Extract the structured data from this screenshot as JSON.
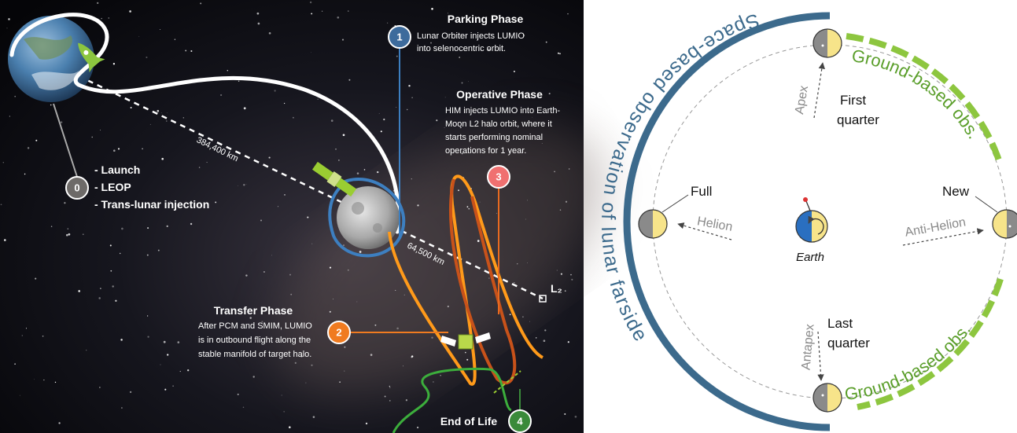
{
  "mission_diagram": {
    "phases": [
      {
        "number": "0",
        "items": [
          "- Launch",
          "- LEOP",
          "- Trans-lunar injection"
        ]
      },
      {
        "number": "1",
        "title": "Parking Phase",
        "lines": [
          "Lunar Orbiter injects LUMIO",
          "into selenocentric orbit."
        ]
      },
      {
        "number": "2",
        "title": "Transfer Phase",
        "lines": [
          "After PCM and SMIM, LUMIO",
          "is in outbound flight along the",
          "stable manifold of target halo."
        ]
      },
      {
        "number": "3",
        "title": "Operative Phase",
        "lines": [
          "HIM injects LUMIO into Earth-",
          "Moon L2 halo orbit, where it",
          "starts performing nominal",
          "operations for 1 year."
        ]
      },
      {
        "number": "4",
        "title": "End of Life"
      }
    ],
    "earth_moon_distance": "384,400 km",
    "moon_l2_distance": "64,500 km",
    "l2_label": "L₂"
  },
  "observation_diagram": {
    "space_arc": "Space-based observation of lunar farside",
    "ground_arcs": [
      "Ground-based obs.",
      "Ground-based obs."
    ],
    "lunar_phases": {
      "full": "Full",
      "new": "New",
      "first_quarter": [
        "First",
        "quarter"
      ],
      "last_quarter": [
        "Last",
        "quarter"
      ]
    },
    "directions": {
      "apex": "Apex",
      "antapex": "Antapex",
      "helion": "Helion",
      "anti_helion": "Anti-Helion"
    },
    "earth": "Earth"
  }
}
